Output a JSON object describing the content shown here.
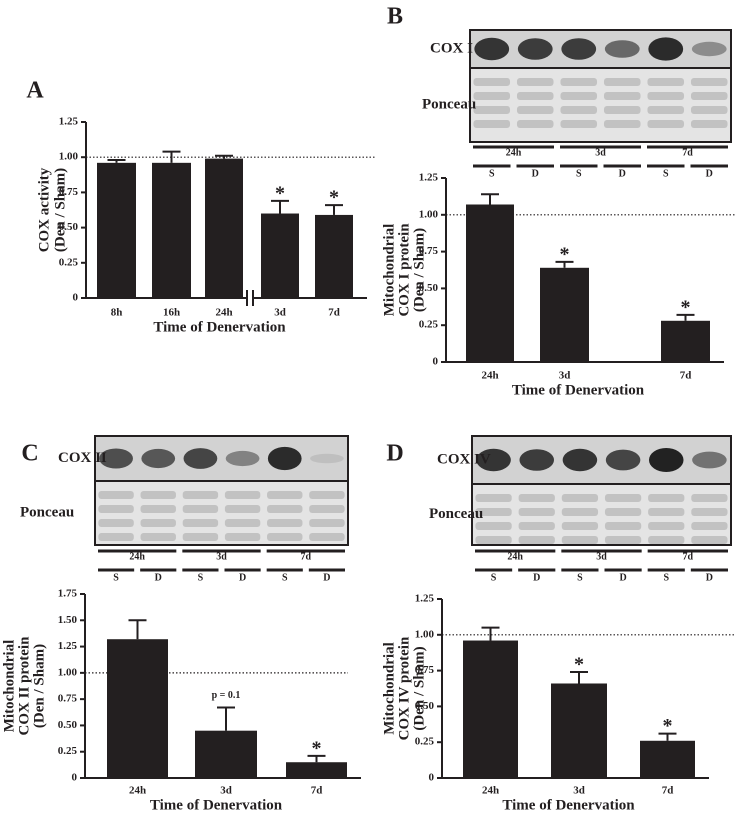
{
  "chart_data": [
    {
      "type": "bar",
      "panel": "A",
      "ylabel": [
        "COX activity",
        "(Den / Sham)"
      ],
      "xlabel": "Time of Denervation",
      "categories": [
        "8h",
        "16h",
        "24h",
        "3d",
        "7d"
      ],
      "values": [
        0.96,
        0.96,
        0.99,
        0.6,
        0.59
      ],
      "errors": [
        0.02,
        0.08,
        0.02,
        0.09,
        0.07
      ],
      "annotations": [
        null,
        null,
        null,
        "*",
        "*"
      ],
      "color": "#231f20",
      "reference_line": 1,
      "ylim": [
        0,
        1.25
      ],
      "yticks": [
        0,
        {
          "value": 0.25,
          "label": "0.25"
        },
        {
          "value": 0.5,
          "label": "0.50"
        },
        {
          "value": 0.75,
          "label": "0.75"
        },
        {
          "value": 1,
          "label": "1.00"
        },
        {
          "value": 1.25,
          "label": "1.25"
        }
      ]
    },
    {
      "type": "bar",
      "panel": "B",
      "ylabel": [
        "Mitochondrial",
        "COX I protein",
        "(Den / Sham)"
      ],
      "xlabel": "Time of Denervation",
      "blot": {
        "rows": [
          "COX I",
          "Ponceau"
        ],
        "groups": [
          "24h",
          "3d",
          "7d"
        ],
        "lanes": [
          "S",
          "D",
          "S",
          "D",
          "S",
          "D"
        ]
      },
      "categories": [
        "24h",
        "3d",
        "7d"
      ],
      "values": [
        1.07,
        0.64,
        0.28
      ],
      "errors": [
        0.07,
        0.04,
        0.04
      ],
      "annotations": [
        null,
        "*",
        "*"
      ],
      "color": "#231f20",
      "reference_line": 1,
      "ylim": [
        0,
        1.25
      ],
      "yticks": [
        0,
        {
          "value": 0.25,
          "label": "0.25"
        },
        {
          "value": 0.5,
          "label": "0.50"
        },
        {
          "value": 0.75,
          "label": "0.75"
        },
        {
          "value": 1,
          "label": "1.00"
        },
        {
          "value": 1.25,
          "label": "1.25"
        }
      ]
    },
    {
      "type": "bar",
      "panel": "C",
      "ylabel": [
        "Mitochondrial",
        "COX II protein",
        "(Den / Sham)"
      ],
      "xlabel": "Time of Denervation",
      "blot": {
        "rows": [
          "COX II",
          "Ponceau"
        ],
        "groups": [
          "24h",
          "3d",
          "7d"
        ],
        "lanes": [
          "S",
          "D",
          "S",
          "D",
          "S",
          "D"
        ]
      },
      "categories": [
        "24h",
        "3d",
        "7d"
      ],
      "values": [
        1.32,
        0.45,
        0.15
      ],
      "errors": [
        0.18,
        0.22,
        0.06
      ],
      "annotations": [
        null,
        "p = 0.1",
        "*"
      ],
      "color": "#231f20",
      "reference_line": 1,
      "ylim": [
        0,
        1.75
      ],
      "yticks": [
        0,
        {
          "value": 0.25,
          "label": "0.25"
        },
        {
          "value": 0.5,
          "label": "0.50"
        },
        {
          "value": 0.75,
          "label": "0.75"
        },
        {
          "value": 1,
          "label": "1.00"
        },
        {
          "value": 1.25,
          "label": "1.25"
        },
        {
          "value": 1.5,
          "label": "1.50"
        },
        {
          "value": 1.75,
          "label": "1.75"
        }
      ]
    },
    {
      "type": "bar",
      "panel": "D",
      "ylabel": [
        "Mitochondrial",
        "COX IV protein",
        "(Den / Sham)"
      ],
      "xlabel": "Time of Denervation",
      "blot": {
        "rows": [
          "COX IV",
          "Ponceau"
        ],
        "groups": [
          "24h",
          "3d",
          "7d"
        ],
        "lanes": [
          "S",
          "D",
          "S",
          "D",
          "S",
          "D"
        ]
      },
      "categories": [
        "24h",
        "3d",
        "7d"
      ],
      "values": [
        0.96,
        0.66,
        0.26
      ],
      "errors": [
        0.09,
        0.08,
        0.05
      ],
      "annotations": [
        null,
        "*",
        "*"
      ],
      "color": "#231f20",
      "reference_line": 1,
      "ylim": [
        0,
        1.25
      ],
      "yticks": [
        0,
        {
          "value": 0.25,
          "label": "0.25"
        },
        {
          "value": 0.5,
          "label": "0.50"
        },
        {
          "value": 0.75,
          "label": "0.75"
        },
        {
          "value": 1,
          "label": "1.00"
        },
        {
          "value": 1.25,
          "label": "1.25"
        }
      ]
    }
  ]
}
